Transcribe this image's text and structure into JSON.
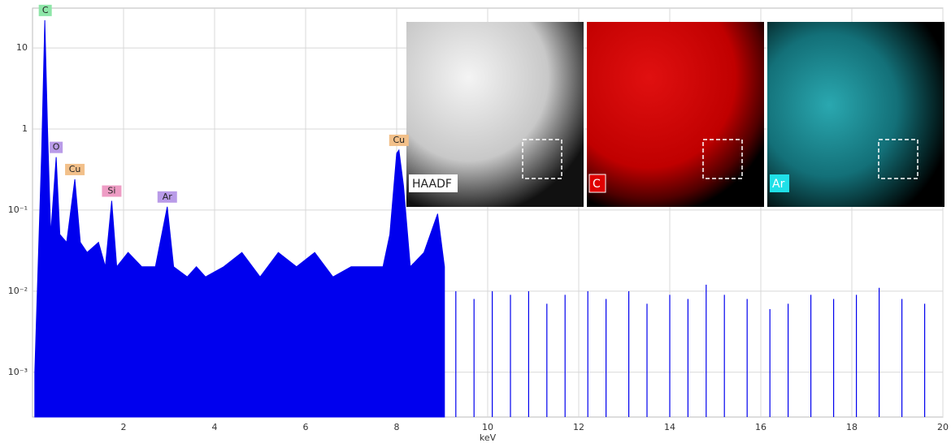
{
  "chart_data": {
    "type": "spectrum",
    "x_label": "keV",
    "xlim": [
      0,
      20
    ],
    "xticks": [
      2,
      4,
      6,
      8,
      10,
      12,
      14,
      16,
      18,
      20
    ],
    "ylim": [
      0.00028,
      31
    ],
    "log_y": true,
    "yticks": [
      {
        "value": 0.001,
        "label": "10⁻³"
      },
      {
        "value": 0.01,
        "label": "10⁻²"
      },
      {
        "value": 0.1,
        "label": "10⁻¹"
      },
      1,
      10
    ],
    "grid": true,
    "series": [
      {
        "color": "#0000ee",
        "x": [
          0.05,
          0.2,
          0.27,
          0.33,
          0.4,
          0.52,
          0.6,
          0.75,
          0.93,
          1.05,
          1.2,
          1.45,
          1.6,
          1.74,
          1.85,
          2.1,
          2.4,
          2.7,
          2.96,
          3.1,
          3.4,
          3.6,
          3.8,
          4.2,
          4.6,
          5.0,
          5.4,
          5.8,
          6.2,
          6.6,
          7.0,
          7.4,
          7.7,
          7.85,
          8.0,
          8.05,
          8.15,
          8.3,
          8.6,
          8.9,
          9.05
        ],
        "values": [
          0.001,
          0.5,
          22,
          1,
          0.05,
          0.45,
          0.05,
          0.04,
          0.24,
          0.04,
          0.03,
          0.04,
          0.02,
          0.13,
          0.02,
          0.03,
          0.02,
          0.02,
          0.11,
          0.02,
          0.015,
          0.02,
          0.015,
          0.02,
          0.03,
          0.015,
          0.03,
          0.02,
          0.03,
          0.015,
          0.02,
          0.02,
          0.02,
          0.05,
          0.5,
          0.55,
          0.2,
          0.02,
          0.03,
          0.09,
          0.02
        ]
      },
      {
        "color": "#0000ee",
        "style": "stems",
        "x": [
          9.3,
          9.7,
          10.1,
          10.5,
          10.9,
          11.3,
          11.7,
          12.2,
          12.6,
          13.1,
          13.5,
          14.0,
          14.4,
          14.8,
          15.2,
          15.7,
          16.2,
          16.6,
          17.1,
          17.6,
          18.1,
          18.6,
          19.1,
          19.6
        ],
        "values": [
          0.01,
          0.008,
          0.01,
          0.009,
          0.01,
          0.007,
          0.009,
          0.01,
          0.008,
          0.01,
          0.007,
          0.009,
          0.008,
          0.012,
          0.009,
          0.008,
          0.006,
          0.007,
          0.009,
          0.008,
          0.009,
          0.011,
          0.008,
          0.007
        ]
      }
    ],
    "annotations": [
      {
        "text": "C",
        "x": 0.28,
        "y": 22,
        "color": "#8ee6a8"
      },
      {
        "text": "O",
        "x": 0.52,
        "y": 0.45,
        "color": "#b99be8"
      },
      {
        "text": "Cu",
        "x": 0.93,
        "y": 0.24,
        "color": "#f2c08a"
      },
      {
        "text": "Si",
        "x": 1.74,
        "y": 0.13,
        "color": "#ee9cc4"
      },
      {
        "text": "Ar",
        "x": 2.96,
        "y": 0.11,
        "color": "#b99be8"
      },
      {
        "text": "Cu",
        "x": 8.05,
        "y": 0.55,
        "color": "#f2c08a"
      }
    ]
  },
  "insets": [
    {
      "label": "HAADF"
    },
    {
      "label": "C"
    },
    {
      "label": "Ar"
    }
  ]
}
